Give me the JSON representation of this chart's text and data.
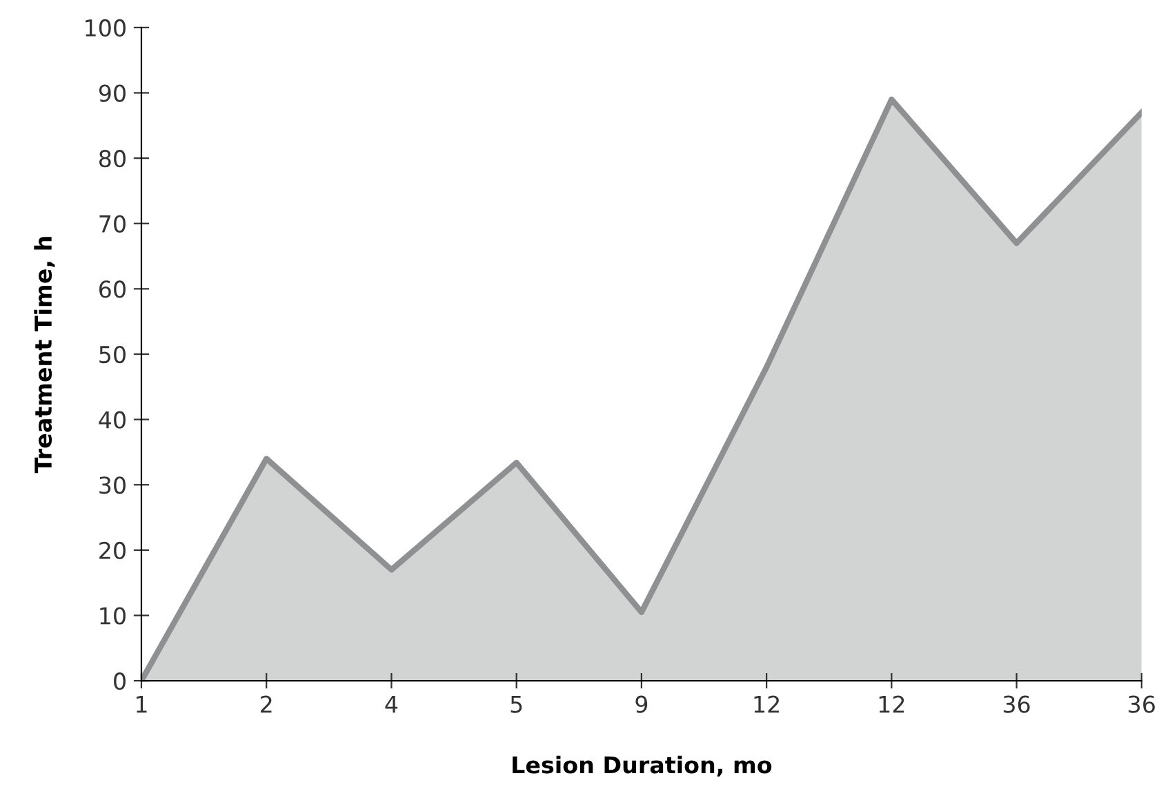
{
  "chart_data": {
    "type": "area",
    "xlabel": "Lesion Duration, mo",
    "ylabel": "Treatment Time, h",
    "categories": [
      "1",
      "2",
      "4",
      "5",
      "9",
      "12",
      "12",
      "36",
      "36"
    ],
    "series": [
      {
        "color": "#8f9092",
        "values": [
          0,
          34,
          17,
          33.4,
          10.5,
          48,
          89,
          67,
          87
        ]
      }
    ],
    "ylim": [
      0,
      100
    ],
    "yticks": [
      0,
      10,
      20,
      30,
      40,
      50,
      60,
      70,
      80,
      90,
      100
    ],
    "grid": false,
    "legend": false
  }
}
